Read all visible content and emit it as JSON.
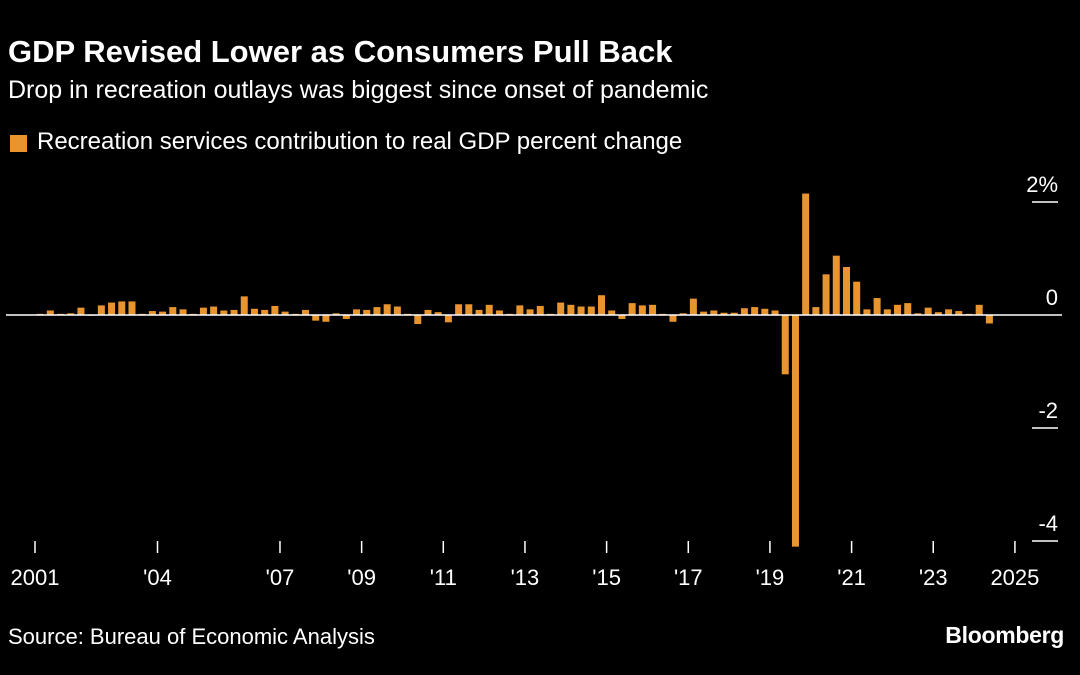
{
  "title": "GDP Revised Lower as Consumers Pull Back",
  "subtitle": "Drop in recreation outlays was biggest since onset of pandemic",
  "source": "Source: Bureau of Economic Analysis",
  "brand": "Bloomberg",
  "colors": {
    "bar": "#e8952f",
    "background": "#000000",
    "text": "#ffffff",
    "zero_line": "#ffffff"
  },
  "chart_data": {
    "type": "bar",
    "legend": {
      "position": "top-left",
      "entries": [
        "Recreation services contribution to real GDP percent change"
      ]
    },
    "series": [
      {
        "name": "Recreation services contribution to real GDP percent change",
        "x_start": "2001-Q1",
        "frequency": "quarterly",
        "values": [
          0.02,
          0.08,
          0.02,
          0.03,
          0.13,
          0.0,
          0.17,
          0.22,
          0.24,
          0.24,
          0.02,
          0.07,
          0.06,
          0.14,
          0.1,
          0.02,
          0.13,
          0.15,
          0.08,
          0.09,
          0.33,
          0.11,
          0.09,
          0.16,
          0.06,
          0.02,
          0.09,
          -0.1,
          -0.12,
          0.03,
          -0.07,
          0.1,
          0.09,
          0.14,
          0.19,
          0.15,
          0.02,
          -0.16,
          0.09,
          0.05,
          -0.13,
          0.19,
          0.19,
          0.09,
          0.18,
          0.08,
          0.02,
          0.17,
          0.1,
          0.16,
          0.02,
          0.22,
          0.18,
          0.15,
          0.15,
          0.35,
          0.08,
          -0.07,
          0.21,
          0.17,
          0.18,
          0.02,
          -0.12,
          0.03,
          0.29,
          0.06,
          0.08,
          0.04,
          0.04,
          0.12,
          0.14,
          0.11,
          0.08,
          -1.05,
          -4.1,
          2.15,
          0.14,
          0.72,
          1.05,
          0.85,
          0.59,
          0.1,
          0.3,
          0.1,
          0.18,
          0.21,
          0.03,
          0.13,
          0.05,
          0.1,
          0.07,
          0.02,
          0.18,
          -0.15
        ]
      }
    ],
    "x_tick_labels": [
      "2001",
      "'04",
      "'07",
      "'09",
      "'11",
      "'13",
      "'15",
      "'17",
      "'19",
      "'21",
      "'23",
      "2025"
    ],
    "x_tick_years": [
      2001,
      2004,
      2007,
      2009,
      2011,
      2013,
      2015,
      2017,
      2019,
      2021,
      2023,
      2025
    ],
    "x_range": [
      "2001-Q1",
      "2025-Q4"
    ],
    "y_ticks": [
      2,
      0,
      -2,
      -4
    ],
    "y_tick_labels": [
      "2%",
      "0",
      "-2",
      "-4"
    ],
    "ylim": [
      -4.3,
      2.3
    ],
    "grid": false,
    "xlabel": "",
    "ylabel": ""
  }
}
